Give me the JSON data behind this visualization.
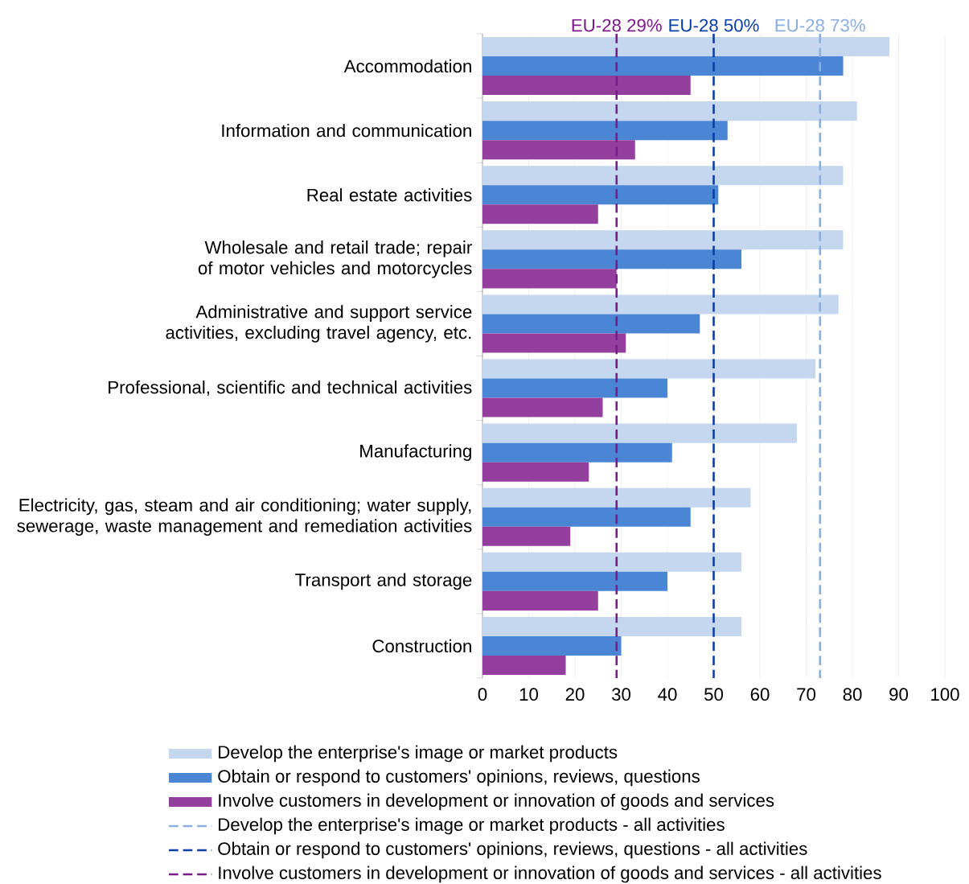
{
  "chart_data": {
    "type": "bar",
    "orientation": "horizontal",
    "categories": [
      "Accommodation",
      "Information and communication",
      "Real estate activities",
      "Wholesale and retail trade; repair of motor vehicles and motorcycles",
      "Administrative and support service activities, excluding travel agency, etc.",
      "Professional, scientific and technical activities",
      "Manufacturing",
      "Electricity, gas, steam and air conditioning; water supply, sewerage, waste management and remediation activities",
      "Transport and storage",
      "Construction"
    ],
    "series": [
      {
        "name": "Develop the enterprise's image or market products",
        "color": "#c5d7ef",
        "values": [
          88,
          81,
          78,
          78,
          77,
          72,
          68,
          58,
          56,
          56
        ]
      },
      {
        "name": "Obtain or respond to customers' opinions, reviews, questions",
        "color": "#4a86d4",
        "values": [
          78,
          53,
          51,
          56,
          47,
          40,
          41,
          45,
          40,
          30
        ]
      },
      {
        "name": "Involve customers in development or innovation of goods and services",
        "color": "#943f9e",
        "values": [
          45,
          33,
          25,
          29,
          31,
          26,
          23,
          19,
          25,
          18
        ]
      }
    ],
    "xlim": [
      0,
      100
    ],
    "xticks": [
      0,
      10,
      20,
      30,
      40,
      50,
      60,
      70,
      80,
      90,
      100
    ],
    "grid": "x",
    "legend": "bottom",
    "ref_lines": [
      {
        "axis": "x",
        "value": 73,
        "label": "EU-28 73%",
        "color": "#8aaee0",
        "line_style": "dashed"
      },
      {
        "axis": "x",
        "value": 50,
        "label": "EU-28 50%",
        "color": "#0a3ea8",
        "line_style": "dashed"
      },
      {
        "axis": "x",
        "value": 29,
        "label": "EU-28 29%",
        "color": "#7b1a8a",
        "line_style": "dashed"
      }
    ],
    "annotations": [
      "Develop the enterprise's image or market products - all activities",
      "Obtain or respond to customers' opinions, reviews, questions - all activities",
      "Involve customers in development or innovation of goods and services - all activities"
    ]
  }
}
